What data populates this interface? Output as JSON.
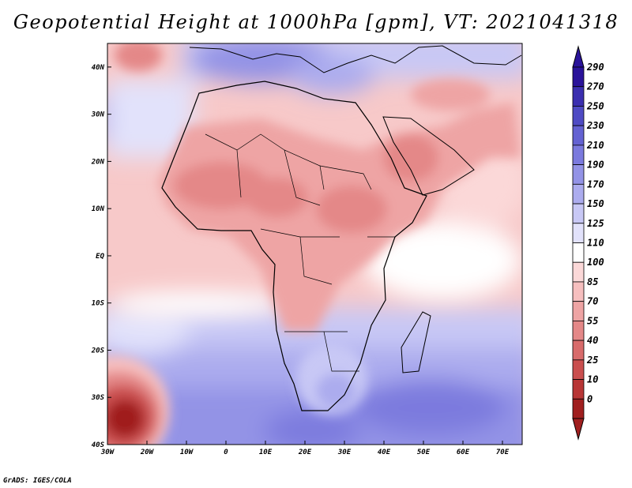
{
  "title": "Geopotential Height at 1000hPa [gpm], VT: 2021041318",
  "credit": "GrADS: IGES/COLA",
  "map": {
    "lon_labels": [
      "30W",
      "20W",
      "10W",
      "0",
      "10E",
      "20E",
      "30E",
      "40E",
      "50E",
      "60E",
      "70E"
    ],
    "lat_labels": [
      "40N",
      "30N",
      "20N",
      "10N",
      "EQ",
      "10S",
      "20S",
      "30S",
      "40S"
    ],
    "lon_range": [
      -30,
      75
    ],
    "lat_range": [
      -40,
      45
    ]
  },
  "colorbar": {
    "levels": [
      "290",
      "270",
      "250",
      "230",
      "210",
      "190",
      "170",
      "150",
      "125",
      "110",
      "100",
      "85",
      "70",
      "55",
      "40",
      "25",
      "10",
      "0"
    ],
    "colors": [
      "#2a139a",
      "#3b2fb0",
      "#4f4bc4",
      "#6462d2",
      "#7b7ade",
      "#9393e6",
      "#acacee",
      "#c8c8f5",
      "#e2e2fb",
      "#ffffff",
      "#fbd8d8",
      "#f6bfbf",
      "#eea4a4",
      "#e48888",
      "#d86b6b",
      "#ca4f4f",
      "#b83636",
      "#a01f1f"
    ]
  }
}
